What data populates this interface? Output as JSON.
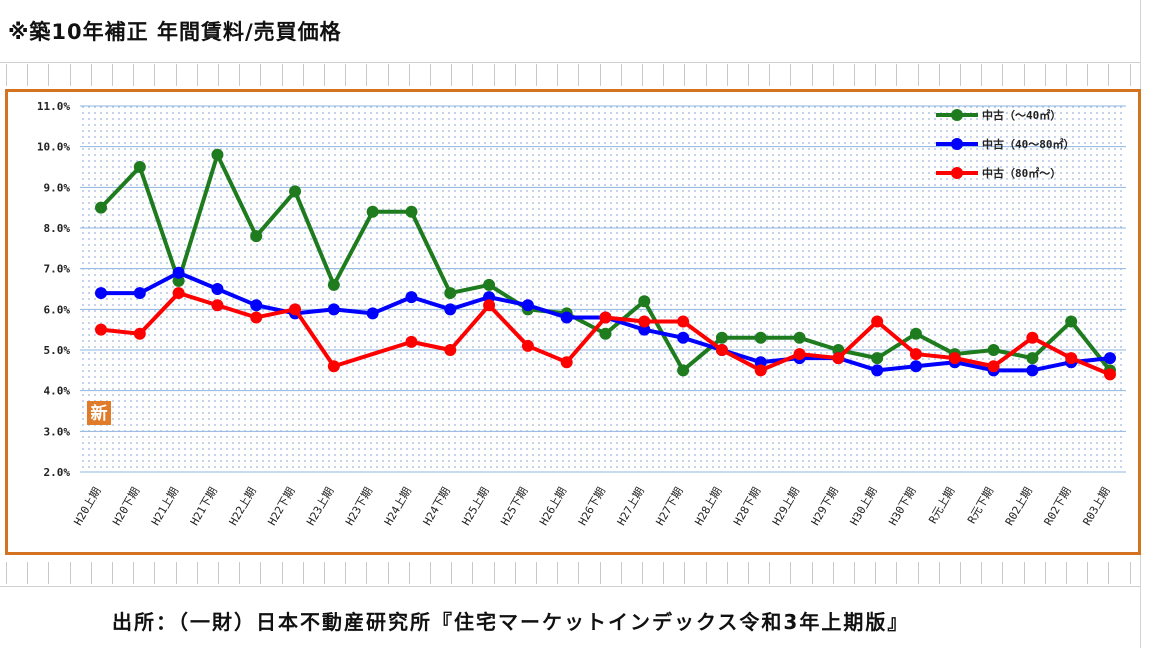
{
  "page": {
    "title": "※築10年補正 年間賃料/売買価格",
    "source": "出所：（一財）日本不動産研究所『住宅マーケットインデックス令和3年上期版』"
  },
  "chart_data": {
    "type": "line",
    "categories": [
      "H20上期",
      "H20下期",
      "H21上期",
      "H21下期",
      "H22上期",
      "H22下期",
      "H23上期",
      "H23下期",
      "H24上期",
      "H24下期",
      "H25上期",
      "H25下期",
      "H26上期",
      "H26下期",
      "H27上期",
      "H27下期",
      "H28上期",
      "H28下期",
      "H29上期",
      "H29下期",
      "H30上期",
      "H30下期",
      "R元上期",
      "R元下期",
      "R02上期",
      "R02下期",
      "R03上期"
    ],
    "series": [
      {
        "name": "中古（～40㎡）",
        "color": "#1e7b1e",
        "values": [
          8.5,
          9.5,
          6.7,
          9.8,
          7.8,
          8.9,
          6.6,
          8.4,
          8.4,
          6.4,
          6.6,
          6.0,
          5.9,
          5.4,
          6.2,
          4.5,
          5.3,
          5.3,
          5.3,
          5.0,
          4.8,
          5.4,
          4.9,
          5.0,
          4.8,
          5.7,
          4.5
        ]
      },
      {
        "name": "中古（40～80㎡）",
        "color": "#0000ff",
        "values": [
          6.4,
          6.4,
          6.9,
          6.5,
          6.1,
          5.9,
          6.0,
          5.9,
          6.3,
          6.0,
          6.3,
          6.1,
          5.8,
          5.8,
          5.5,
          5.3,
          5.0,
          4.7,
          4.8,
          4.8,
          4.5,
          4.6,
          4.7,
          4.5,
          4.5,
          4.7,
          4.8
        ]
      },
      {
        "name": "中古（80㎡～）",
        "color": "#ff0000",
        "values": [
          5.5,
          5.4,
          6.4,
          6.1,
          5.8,
          6.0,
          4.6,
          null,
          5.2,
          5.0,
          6.1,
          5.1,
          4.7,
          5.8,
          5.7,
          5.7,
          5.0,
          4.5,
          4.9,
          4.8,
          5.7,
          4.9,
          4.8,
          4.6,
          5.3,
          4.8,
          4.4
        ]
      }
    ],
    "yticks": [
      "2.0%",
      "3.0%",
      "4.0%",
      "5.0%",
      "6.0%",
      "7.0%",
      "8.0%",
      "9.0%",
      "10.0%",
      "11.0%"
    ],
    "ylim": [
      2.0,
      11.0
    ],
    "legend_position": "top-right",
    "badge": "新",
    "badge_color": "#e07b2a"
  }
}
